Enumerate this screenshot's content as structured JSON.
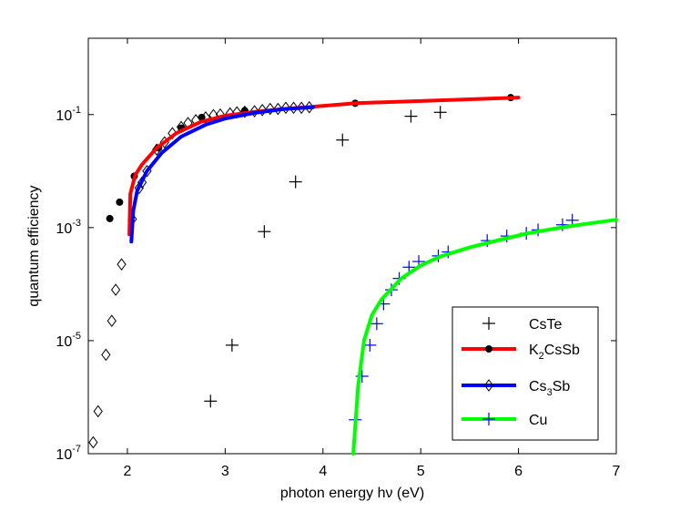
{
  "chart_data": {
    "type": "scatter",
    "title": "",
    "xlabel": "photon energy hν (eV)",
    "ylabel": "quantum efficiency",
    "xlim": [
      1.6,
      7
    ],
    "ylim_log10": [
      -7,
      0.35
    ],
    "yscale": "log",
    "x_ticks": [
      {
        "value": 2,
        "label": "2"
      },
      {
        "value": 3,
        "label": "3"
      },
      {
        "value": 4,
        "label": "4"
      },
      {
        "value": 5,
        "label": "5"
      },
      {
        "value": 6,
        "label": "6"
      },
      {
        "value": 7,
        "label": "7"
      }
    ],
    "y_ticks": [
      {
        "exp": -7,
        "base": "10",
        "power": "-7"
      },
      {
        "exp": -5,
        "base": "10",
        "power": "-5"
      },
      {
        "exp": -3,
        "base": "10",
        "power": "-3"
      },
      {
        "exp": -1,
        "base": "10",
        "power": "-1"
      }
    ],
    "legend_position": "bottom-right",
    "series": [
      {
        "name": "CsTe",
        "legend_main": "CsTe",
        "legend_sub": "",
        "legend_rest": "",
        "marker": "plus",
        "marker_color": "#000000",
        "line": false,
        "points": [
          [
            2.85,
            -6.07
          ],
          [
            3.07,
            -5.08
          ],
          [
            3.4,
            -3.07
          ],
          [
            3.72,
            -2.19
          ],
          [
            4.2,
            -1.45
          ],
          [
            4.9,
            -1.03
          ],
          [
            5.2,
            -0.96
          ]
        ]
      },
      {
        "name": "K2CsSb",
        "legend_main": "K",
        "legend_sub": "2",
        "legend_rest": "CsSb",
        "marker": "dot",
        "marker_color": "#000000",
        "line": true,
        "line_color": "#ff0000",
        "points": [
          [
            1.82,
            -2.84
          ],
          [
            1.92,
            -2.55
          ],
          [
            2.07,
            -2.09
          ],
          [
            2.32,
            -1.59
          ],
          [
            2.55,
            -1.24
          ],
          [
            2.76,
            -1.05
          ],
          [
            3.2,
            -0.93
          ],
          [
            4.33,
            -0.8
          ],
          [
            5.92,
            -0.7
          ]
        ],
        "curve": [
          [
            2.02,
            -3.12
          ],
          [
            2.03,
            -2.4
          ],
          [
            2.08,
            -2.07
          ],
          [
            2.15,
            -1.88
          ],
          [
            2.3,
            -1.59
          ],
          [
            2.5,
            -1.33
          ],
          [
            2.75,
            -1.13
          ],
          [
            3.0,
            -1.02
          ],
          [
            3.3,
            -0.95
          ],
          [
            3.6,
            -0.9
          ],
          [
            3.9,
            -0.86
          ],
          [
            4.33,
            -0.8
          ],
          [
            5.0,
            -0.76
          ],
          [
            5.5,
            -0.73
          ],
          [
            6.0,
            -0.7
          ]
        ]
      },
      {
        "name": "Cs3Sb",
        "legend_main": "Cs",
        "legend_sub": "3",
        "legend_rest": "Sb",
        "marker": "diamond",
        "marker_color": "#000000",
        "line": true,
        "line_color": "#0000ff",
        "points": [
          [
            1.65,
            -6.8
          ],
          [
            1.7,
            -6.25
          ],
          [
            1.78,
            -5.25
          ],
          [
            1.84,
            -4.65
          ],
          [
            1.88,
            -4.1
          ],
          [
            1.94,
            -3.65
          ],
          [
            2.05,
            -2.85
          ],
          [
            2.12,
            -2.3
          ],
          [
            2.15,
            -2.2
          ],
          [
            2.2,
            -2.0
          ],
          [
            2.3,
            -1.62
          ],
          [
            2.38,
            -1.49
          ],
          [
            2.46,
            -1.33
          ],
          [
            2.55,
            -1.22
          ],
          [
            2.62,
            -1.15
          ],
          [
            2.7,
            -1.1
          ],
          [
            2.8,
            -1.05
          ],
          [
            2.88,
            -1.01
          ],
          [
            2.95,
            -1.0
          ],
          [
            3.05,
            -0.98
          ],
          [
            3.12,
            -0.96
          ],
          [
            3.2,
            -0.95
          ],
          [
            3.3,
            -0.94
          ],
          [
            3.38,
            -0.92
          ],
          [
            3.46,
            -0.9
          ],
          [
            3.54,
            -0.9
          ],
          [
            3.62,
            -0.88
          ],
          [
            3.7,
            -0.88
          ],
          [
            3.78,
            -0.88
          ],
          [
            3.86,
            -0.87
          ]
        ],
        "curve": [
          [
            2.04,
            -3.25
          ],
          [
            2.06,
            -2.7
          ],
          [
            2.1,
            -2.35
          ],
          [
            2.2,
            -2.0
          ],
          [
            2.35,
            -1.68
          ],
          [
            2.55,
            -1.39
          ],
          [
            2.8,
            -1.18
          ],
          [
            3.0,
            -1.07
          ],
          [
            3.3,
            -0.97
          ],
          [
            3.6,
            -0.9
          ],
          [
            3.9,
            -0.87
          ]
        ]
      },
      {
        "name": "Cu",
        "legend_main": "Cu",
        "legend_sub": "",
        "legend_rest": "",
        "marker": "plus",
        "marker_color": "#0000ff",
        "line": true,
        "line_color": "#00ff00",
        "points": [
          [
            4.33,
            -6.4
          ],
          [
            4.4,
            -5.63
          ],
          [
            4.48,
            -5.08
          ],
          [
            4.55,
            -4.7
          ],
          [
            4.62,
            -4.35
          ],
          [
            4.7,
            -4.1
          ],
          [
            4.78,
            -3.9
          ],
          [
            4.88,
            -3.7
          ],
          [
            4.98,
            -3.6
          ],
          [
            5.18,
            -3.5
          ],
          [
            5.28,
            -3.43
          ],
          [
            5.68,
            -3.23
          ],
          [
            5.88,
            -3.15
          ],
          [
            6.08,
            -3.1
          ],
          [
            6.2,
            -3.04
          ],
          [
            6.45,
            -2.95
          ],
          [
            6.55,
            -2.87
          ]
        ],
        "curve": [
          [
            4.31,
            -7.0
          ],
          [
            4.36,
            -5.8
          ],
          [
            4.42,
            -5.0
          ],
          [
            4.5,
            -4.55
          ],
          [
            4.6,
            -4.27
          ],
          [
            4.8,
            -3.9
          ],
          [
            5.0,
            -3.67
          ],
          [
            5.2,
            -3.51
          ],
          [
            5.5,
            -3.35
          ],
          [
            5.8,
            -3.22
          ],
          [
            6.1,
            -3.1
          ],
          [
            6.5,
            -2.98
          ],
          [
            7.0,
            -2.86
          ]
        ]
      }
    ]
  }
}
